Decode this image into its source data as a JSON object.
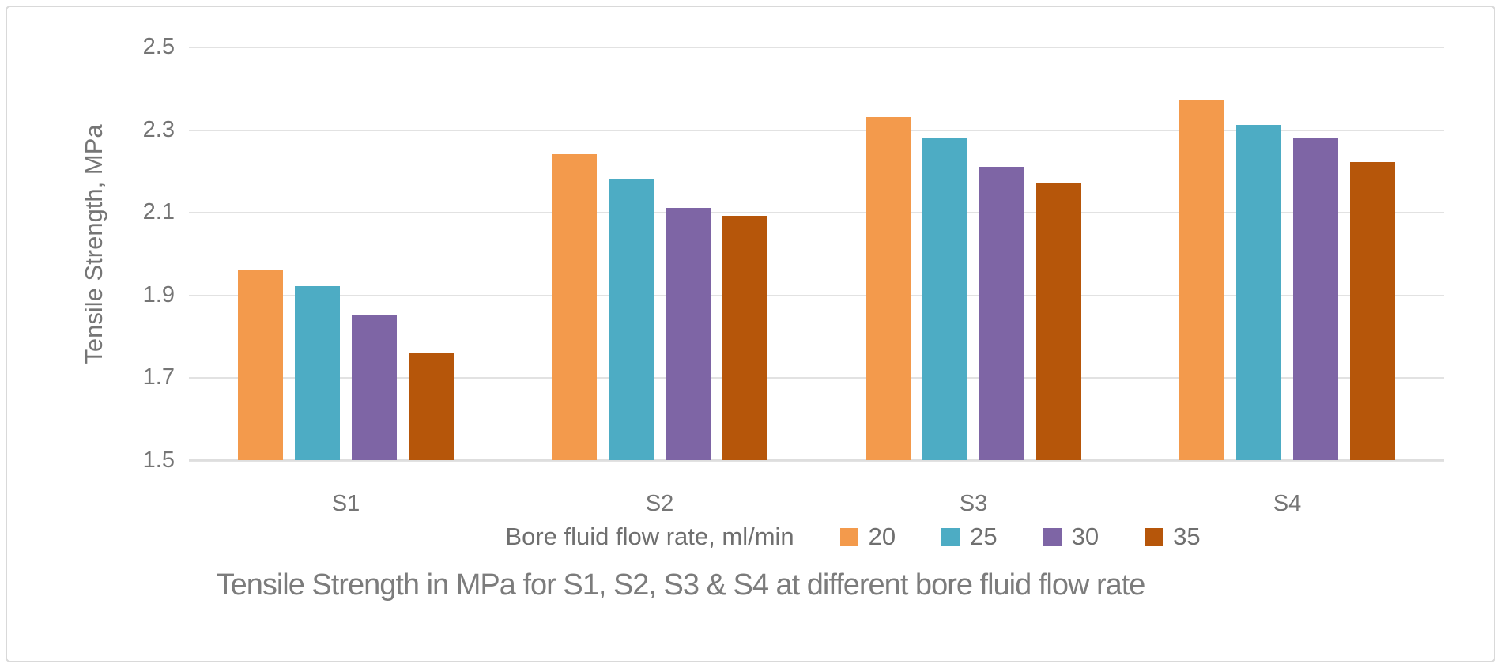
{
  "figure": {
    "border_color": "#d9d9d9",
    "background": "#ffffff"
  },
  "chart_data": {
    "type": "bar",
    "title": "Tensile Strength in MPa for S1, S2, S3 & S4 at different bore fluid flow rate",
    "xlabel": "Bore fluid flow rate, ml/min",
    "ylabel": "Tensile Strength, MPa",
    "categories": [
      "S1",
      "S2",
      "S3",
      "S4"
    ],
    "series": [
      {
        "name": "20",
        "color": "#F39A4C",
        "values": [
          1.96,
          2.24,
          2.33,
          2.37
        ]
      },
      {
        "name": "25",
        "color": "#4DACC4",
        "values": [
          1.92,
          2.18,
          2.28,
          2.31
        ]
      },
      {
        "name": "30",
        "color": "#7E65A5",
        "values": [
          1.85,
          2.11,
          2.21,
          2.28
        ]
      },
      {
        "name": "35",
        "color": "#B6560A",
        "values": [
          1.76,
          2.09,
          2.17,
          2.22
        ]
      }
    ],
    "ylim": [
      1.5,
      2.5
    ],
    "yticks": [
      2.5,
      2.3,
      2.1,
      1.9,
      1.7,
      1.5
    ],
    "grid": true,
    "legend_position": "bottom",
    "gridline_color": "#e2e2e2",
    "text_color": "#757575",
    "title_color": "#7c7c7c"
  }
}
